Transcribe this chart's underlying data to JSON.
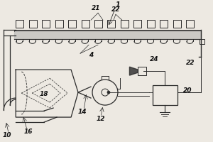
{
  "bg_color": "#ede9e2",
  "line_color": "#2a2a2a",
  "label_color": "#111111",
  "fig_w": 3.0,
  "fig_h": 2.0,
  "dpi": 100
}
